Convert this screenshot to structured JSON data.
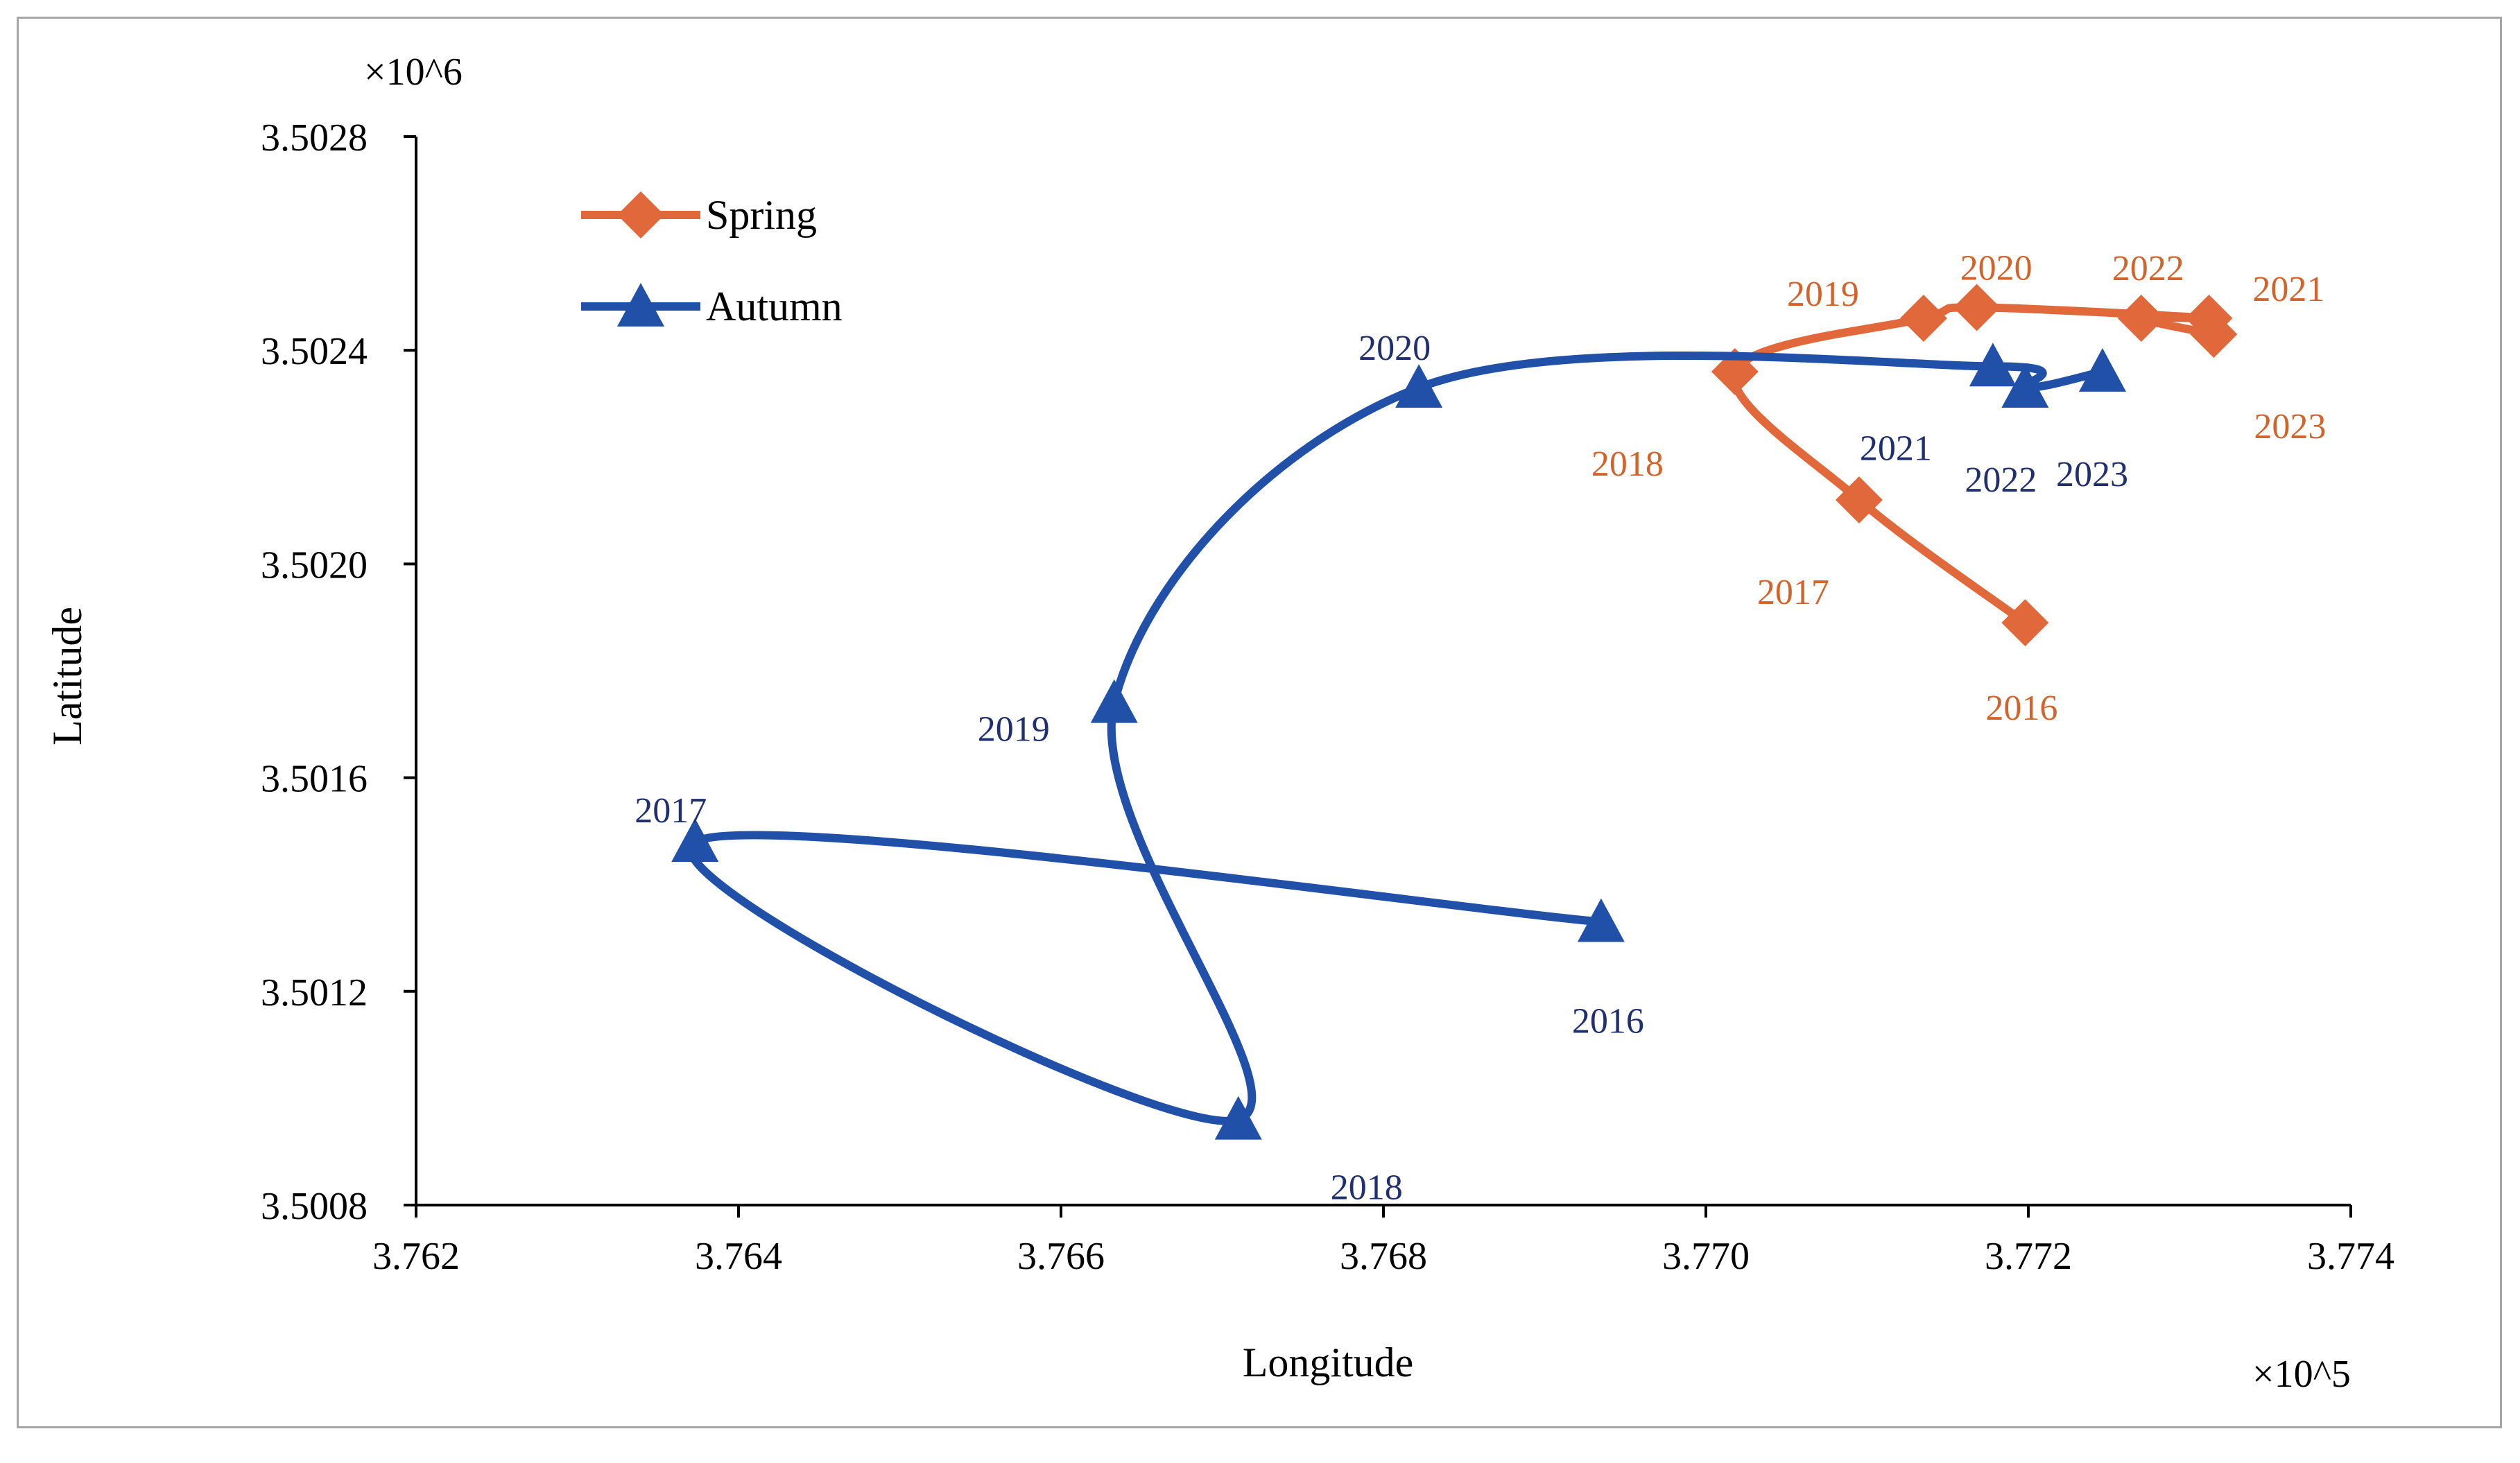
{
  "chart_data": {
    "type": "line",
    "title": "",
    "xlabel": "Longitude",
    "ylabel": "Latitude",
    "x_multiplier_label": "×10^5",
    "y_multiplier_label": "×10^6",
    "xlim": [
      3.762,
      3.774
    ],
    "ylim": [
      3.5008,
      3.5028
    ],
    "x_ticks": [
      "3.762",
      "3.764",
      "3.766",
      "3.768",
      "3.770",
      "3.772",
      "3.774"
    ],
    "y_ticks": [
      "3.5008",
      "3.5012",
      "3.5016",
      "3.5020",
      "3.5024",
      "3.5028"
    ],
    "grid": false,
    "legend_position": "top-left",
    "series": [
      {
        "name": "Spring",
        "color": "#E0683A",
        "marker": "diamond",
        "points": [
          {
            "year": "2016",
            "x": 3.77198,
            "y": 3.50189
          },
          {
            "year": "2017",
            "x": 3.77095,
            "y": 3.50212
          },
          {
            "year": "2018",
            "x": 3.77018,
            "y": 3.50236
          },
          {
            "year": "2019",
            "x": 3.77135,
            "y": 3.50246
          },
          {
            "year": "2020",
            "x": 3.77168,
            "y": 3.50248
          },
          {
            "year": "2021",
            "x": 3.77312,
            "y": 3.50246
          },
          {
            "year": "2022",
            "x": 3.7727,
            "y": 3.50246
          },
          {
            "year": "2023",
            "x": 3.77315,
            "y": 3.50243
          }
        ]
      },
      {
        "name": "Autumn",
        "color": "#2050A8",
        "marker": "triangle",
        "points": [
          {
            "year": "2016",
            "x": 3.76935,
            "y": 3.50133
          },
          {
            "year": "2017",
            "x": 3.76373,
            "y": 3.50148
          },
          {
            "year": "2018",
            "x": 3.7671,
            "y": 3.50096
          },
          {
            "year": "2019",
            "x": 3.76633,
            "y": 3.50174
          },
          {
            "year": "2020",
            "x": 3.76822,
            "y": 3.50233
          },
          {
            "year": "2021",
            "x": 3.77178,
            "y": 3.50237
          },
          {
            "year": "2022",
            "x": 3.77198,
            "y": 3.50233
          },
          {
            "year": "2023",
            "x": 3.77246,
            "y": 3.50236
          }
        ]
      }
    ]
  }
}
